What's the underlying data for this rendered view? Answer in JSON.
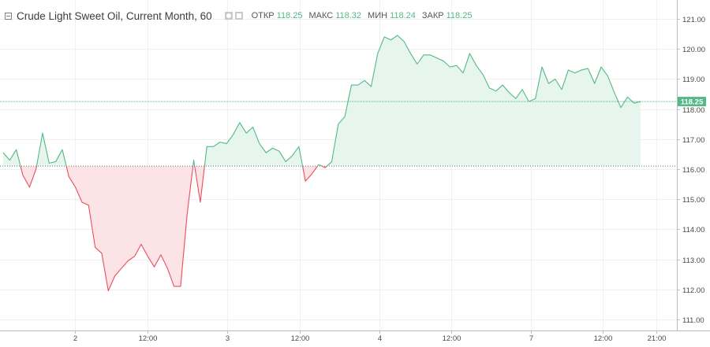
{
  "header": {
    "title": "Crude Light Sweet Oil, Current Month, 60",
    "ohlc": [
      {
        "label": "ОТКР",
        "value": "118.25"
      },
      {
        "label": "МАКС",
        "value": "118.32"
      },
      {
        "label": "МИН",
        "value": "118.24"
      },
      {
        "label": "ЗАКР",
        "value": "118.25"
      }
    ]
  },
  "colors": {
    "up_line": "#53b987",
    "up_fill": "#e6f5ee",
    "down_line": "#eb4d5c",
    "down_fill": "#fce3e5",
    "grid": "#eef0f3",
    "axis_text": "#4a4a4a"
  },
  "chart_data": {
    "type": "area",
    "baseline": 116.1,
    "last_price": "118.25",
    "ylim": [
      110.75,
      121.45
    ],
    "y_ticks": [
      "111.00",
      "112.00",
      "113.00",
      "114.00",
      "115.00",
      "116.00",
      "117.00",
      "118.00",
      "119.00",
      "120.00",
      "121.00"
    ],
    "x_ticks": [
      "2",
      "12:00",
      "3",
      "12:00",
      "4",
      "12:00",
      "7",
      "12:00",
      "21:00"
    ],
    "series": [
      {
        "values": [
          116.55,
          116.3,
          116.65,
          115.8,
          115.4,
          116.0,
          117.2,
          116.2,
          116.25,
          116.65,
          115.75,
          115.4,
          114.9,
          114.8,
          113.4,
          113.2,
          111.95,
          112.45,
          112.7,
          112.95,
          113.1,
          113.5,
          113.1,
          112.75,
          113.15,
          112.7,
          112.1,
          112.1,
          114.5,
          116.3,
          114.9,
          116.75,
          116.75,
          116.9,
          116.85,
          117.15,
          117.55,
          117.2,
          117.4,
          116.85,
          116.55,
          116.7,
          116.6,
          116.25,
          116.45,
          116.75,
          115.6,
          115.85,
          116.15,
          116.05,
          116.25,
          117.5,
          117.75,
          118.8,
          118.8,
          118.95,
          118.75,
          119.85,
          120.4,
          120.3,
          120.45,
          120.25,
          119.85,
          119.5,
          119.8,
          119.8,
          119.7,
          119.6,
          119.4,
          119.45,
          119.2,
          119.85,
          119.45,
          119.15,
          118.7,
          118.6,
          118.8,
          118.55,
          118.35,
          118.65,
          118.25,
          118.35,
          119.4,
          118.85,
          119.0,
          118.65,
          119.3,
          119.2,
          119.3,
          119.35,
          118.85,
          119.4,
          119.1,
          118.55,
          118.05,
          118.4,
          118.2,
          118.25
        ]
      }
    ]
  }
}
